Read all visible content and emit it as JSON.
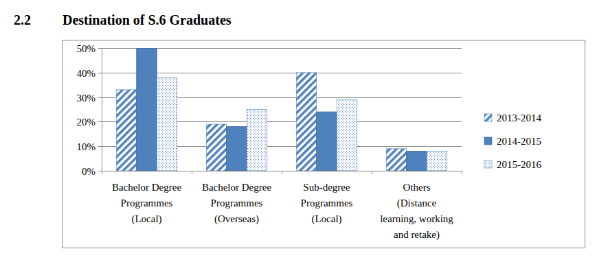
{
  "chart_data": {
    "type": "bar",
    "title": "Destination of S.6 Graduates",
    "annotations": [
      "2.2"
    ],
    "categories": [
      "Bachelor Degree\nProgrammes\n(Local)",
      "Bachelor Degree\nProgrammes\n(Overseas)",
      "Sub-degree\nProgrammes\n(Local)",
      "Others\n(Distance\nlearning, working\nand retake)"
    ],
    "series": [
      {
        "name": "2013-2014",
        "color": "#4f81bd",
        "values": [
          33,
          19,
          40,
          9
        ]
      },
      {
        "name": "2014-2015",
        "color": "#4f81bd",
        "values": [
          50,
          18,
          24,
          8
        ]
      },
      {
        "name": "2015-2016",
        "color": "#4f81bd",
        "values": [
          38,
          25,
          29,
          8
        ]
      }
    ],
    "ylim": [
      0,
      50
    ],
    "yticks": [
      {
        "value": 0,
        "label": "0%"
      },
      {
        "value": 10,
        "label": "10%"
      },
      {
        "value": 20,
        "label": "20%"
      },
      {
        "value": 30,
        "label": "30%"
      },
      {
        "value": 40,
        "label": "40%"
      },
      {
        "value": 50,
        "label": "50%"
      }
    ],
    "grid": true,
    "legend": "right"
  }
}
